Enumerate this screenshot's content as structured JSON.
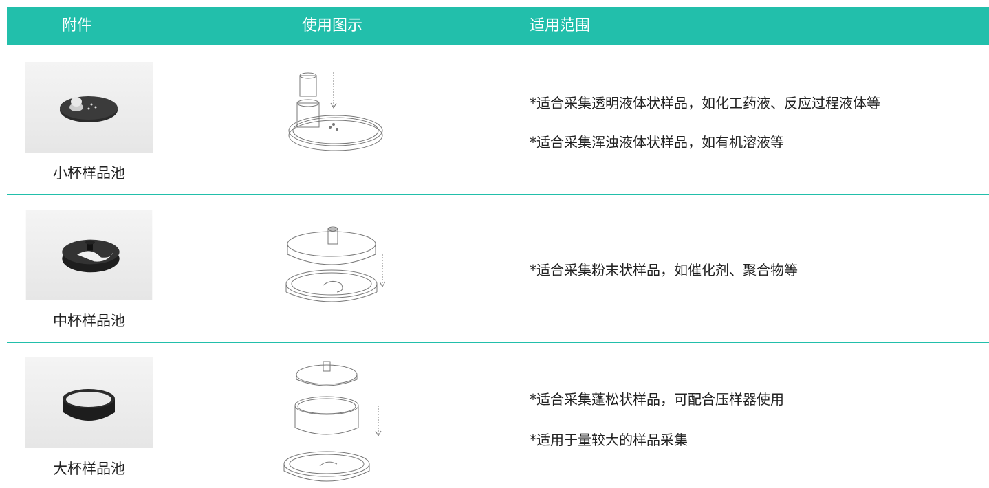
{
  "table": {
    "headers": [
      "附件",
      "使用图示",
      "适用范围"
    ],
    "rows": [
      {
        "name": "小杯样品池",
        "notes": [
          "*适合采集透明液体状样品，如化工药液、反应过程液体等",
          "*适合采集浑浊液体状样品，如有机溶液等"
        ]
      },
      {
        "name": "中杯样品池",
        "notes": [
          "*适合采集粉末状样品，如催化剂、聚合物等"
        ]
      },
      {
        "name": "大杯样品池",
        "notes": [
          "*适合采集蓬松状样品，可配合压样器使用",
          "*适用于量较大的样品采集"
        ]
      }
    ]
  }
}
